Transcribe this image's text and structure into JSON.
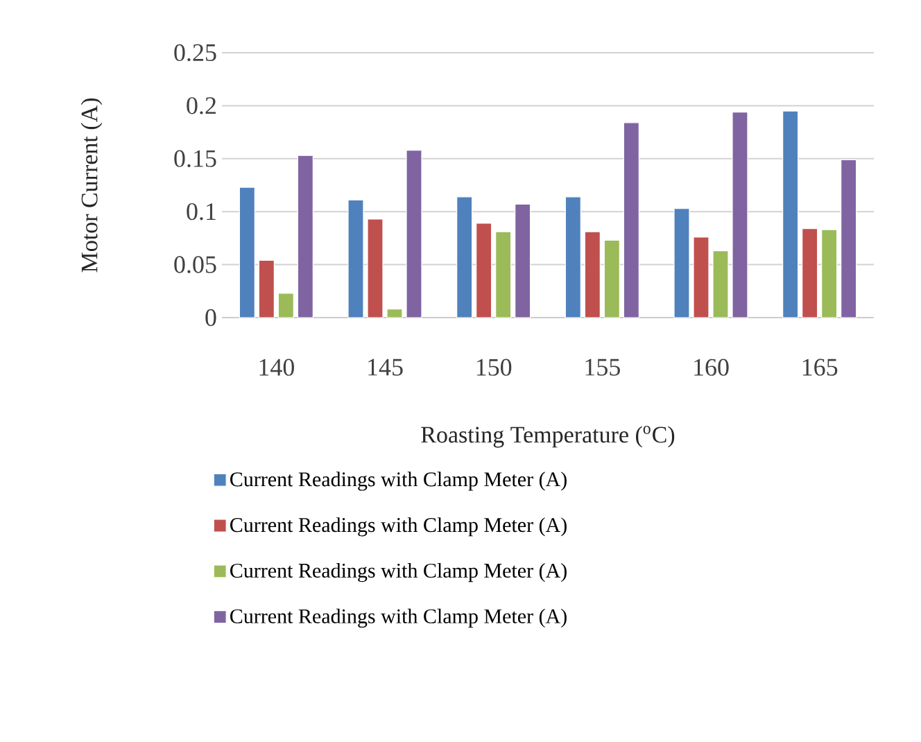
{
  "chart_data": {
    "type": "bar",
    "xlabel": "Roasting Temperature ($^{o}$C)",
    "ylabel": "Motor Current (A)",
    "categories": [
      "140",
      "145",
      "150",
      "155",
      "160",
      "165"
    ],
    "series": [
      {
        "name": "Current Readings with Clamp Meter (A)",
        "color": "#4f81bd",
        "values": [
          0.123,
          0.111,
          0.114,
          0.114,
          0.103,
          0.195
        ]
      },
      {
        "name": "Current Readings with Clamp Meter (A)",
        "color": "#c0504d",
        "values": [
          0.054,
          0.093,
          0.089,
          0.081,
          0.076,
          0.084
        ]
      },
      {
        "name": "Current Readings with Clamp Meter (A)",
        "color": "#9bbb59",
        "values": [
          0.023,
          0.008,
          0.081,
          0.073,
          0.063,
          0.083
        ]
      },
      {
        "name": "Current Readings with Clamp Meter (A)",
        "color": "#8064a2",
        "values": [
          0.153,
          0.158,
          0.107,
          0.184,
          0.194,
          0.149
        ]
      }
    ],
    "ylim": [
      0,
      0.25
    ],
    "yticks": [
      0,
      0.05,
      0.1,
      0.15,
      0.2,
      0.25
    ],
    "grid": "y",
    "legend": "bottom"
  }
}
